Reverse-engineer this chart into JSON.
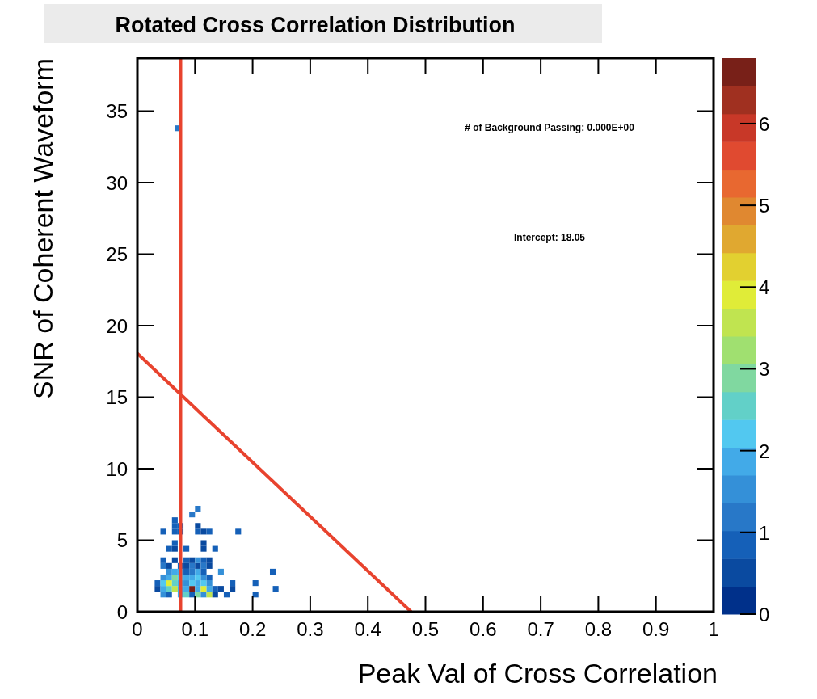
{
  "chart_data": {
    "type": "scatter",
    "title": "Rotated Cross Correlation Distribution",
    "xlabel": "Peak Val of Cross Correlation",
    "ylabel": "SNR of Coherent Waveform",
    "xlim": [
      0,
      1
    ],
    "xticks": [
      0,
      0.1,
      0.2,
      0.3,
      0.4,
      0.5,
      0.6,
      0.7,
      0.8,
      0.9,
      1
    ],
    "ylim": [
      0,
      38.7
    ],
    "yticks": [
      0,
      5,
      10,
      15,
      20,
      25,
      30,
      35
    ],
    "clim": [
      0,
      6.8
    ],
    "cticks": [
      0,
      1,
      2,
      3,
      4,
      5,
      6
    ],
    "annotations": [
      "# of Background Passing: 0.000E+00",
      "Intercept: 18.05"
    ],
    "ref_lines": [
      {
        "axis": "x",
        "value": 0.075,
        "color": "#e8432e"
      }
    ],
    "series": [
      {
        "marker": "square",
        "x": [
          0.045,
          0.055,
          0.075,
          0.085,
          0.095,
          0.105,
          0.115,
          0.125,
          0.135,
          0.155,
          0.205,
          0.035,
          0.045,
          0.055,
          0.065,
          0.075,
          0.085,
          0.095,
          0.105,
          0.115,
          0.125,
          0.135,
          0.145,
          0.165,
          0.24,
          0.035,
          0.045,
          0.055,
          0.065,
          0.075,
          0.085,
          0.095,
          0.105,
          0.115,
          0.125,
          0.165,
          0.205,
          0.045,
          0.055,
          0.065,
          0.075,
          0.085,
          0.095,
          0.105,
          0.115,
          0.125,
          0.055,
          0.065,
          0.075,
          0.085,
          0.095,
          0.105,
          0.115,
          0.145,
          0.235,
          0.045,
          0.055,
          0.075,
          0.085,
          0.095,
          0.105,
          0.115,
          0.125,
          0.045,
          0.065,
          0.085,
          0.095,
          0.105,
          0.115,
          0.125,
          0.055,
          0.065,
          0.085,
          0.115,
          0.135,
          0.065,
          0.115,
          0.045,
          0.065,
          0.075,
          0.105,
          0.115,
          0.125,
          0.175,
          0.065,
          0.075,
          0.105,
          0.065,
          0.095,
          0.105,
          0.07
        ],
        "values": [
          1.2,
          1.2,
          1.2,
          1.2,
          1.2,
          1.2,
          1.2,
          1.2,
          1.2,
          1.2,
          1.2,
          1.6,
          1.6,
          1.6,
          1.6,
          1.6,
          1.6,
          1.6,
          1.6,
          1.6,
          1.6,
          1.6,
          1.6,
          1.6,
          1.6,
          2.0,
          2.0,
          2.0,
          2.0,
          2.0,
          2.0,
          2.0,
          2.0,
          2.0,
          2.0,
          2.0,
          2.0,
          2.4,
          2.4,
          2.4,
          2.4,
          2.4,
          2.4,
          2.4,
          2.4,
          2.4,
          2.8,
          2.8,
          2.8,
          2.8,
          2.8,
          2.8,
          2.8,
          2.8,
          2.8,
          3.2,
          3.2,
          3.2,
          3.2,
          3.2,
          3.2,
          3.2,
          3.2,
          3.6,
          3.6,
          3.6,
          3.6,
          3.6,
          3.6,
          3.6,
          4.4,
          4.4,
          4.4,
          4.4,
          4.4,
          4.8,
          4.8,
          5.6,
          5.6,
          5.6,
          5.6,
          5.6,
          5.6,
          5.6,
          6.0,
          6.0,
          6.0,
          6.4,
          6.8,
          7.2,
          33.8
        ],
        "colors": [
          "#3490d8",
          "#1560b8",
          "#42aae8",
          "#62d0c8",
          "#1560b8",
          "#80d8a0",
          "#3490d8",
          "#c0e450",
          "#0a4aa0",
          "#1560b8",
          "#1560b8",
          "#0a4aa0",
          "#42aae8",
          "#62d0c8",
          "#c0e450",
          "#42aae8",
          "#42aae8",
          "#782018",
          "#42aae8",
          "#e0ec38",
          "#42aae8",
          "#1560b8",
          "#0a4aa0",
          "#0a4aa0",
          "#1560b8",
          "#1560b8",
          "#52c8f0",
          "#e0ec38",
          "#62d0c8",
          "#42aae8",
          "#3490d8",
          "#52c8f0",
          "#42aae8",
          "#52c8f0",
          "#3490d8",
          "#1560b8",
          "#1560b8",
          "#3490d8",
          "#42aae8",
          "#80d8a0",
          "#52c8f0",
          "#42aae8",
          "#42aae8",
          "#52c8f0",
          "#3490d8",
          "#1560b8",
          "#3490d8",
          "#42aae8",
          "#42aae8",
          "#1560b8",
          "#2878c8",
          "#42aae8",
          "#1560b8",
          "#3490d8",
          "#1560b8",
          "#2878c8",
          "#0a4aa0",
          "#1560b8",
          "#0a4aa0",
          "#2878c8",
          "#0a4aa0",
          "#2878c8",
          "#0a4aa0",
          "#1560b8",
          "#0a4aa0",
          "#1560b8",
          "#0a4aa0",
          "#3490d8",
          "#1560b8",
          "#0a4aa0",
          "#1560b8",
          "#0a4aa0",
          "#1560b8",
          "#0a4aa0",
          "#1560b8",
          "#1560b8",
          "#0a4aa0",
          "#1560b8",
          "#1560b8",
          "#1560b8",
          "#1560b8",
          "#0a4aa0",
          "#1560b8",
          "#1560b8",
          "#1560b8",
          "#1560b8",
          "#0a4aa0",
          "#1560b8",
          "#2878c8",
          "#2878c8",
          "#2878c8"
        ]
      },
      {
        "type": "line",
        "x": [
          0,
          0.475
        ],
        "values": [
          18.05,
          0
        ],
        "color": "#e8432e"
      }
    ]
  }
}
